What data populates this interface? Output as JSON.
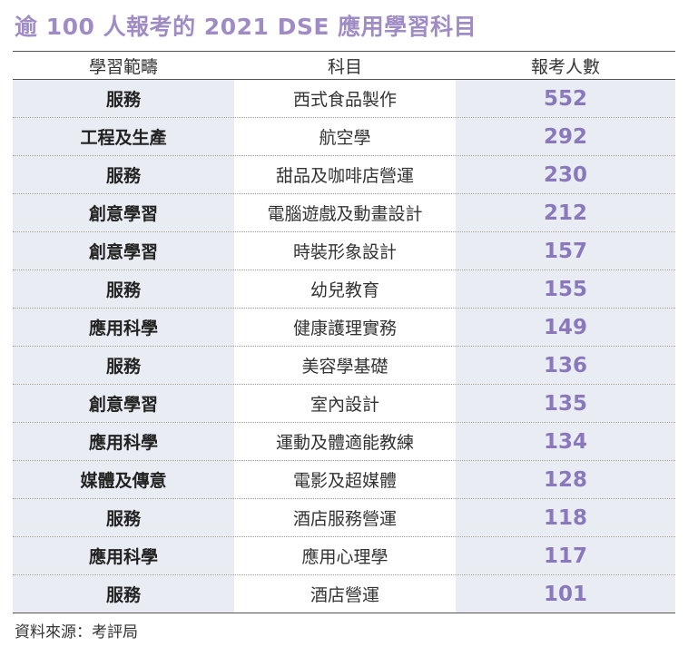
{
  "title": "逾 100 人報考的 2021 DSE 應用學習科目",
  "headers": [
    "學習範疇",
    "科目",
    "報考人數"
  ],
  "rows": [
    {
      "area": "服務",
      "subject": "西式食品製作",
      "count": "552"
    },
    {
      "area": "工程及生產",
      "subject": "航空學",
      "count": "292"
    },
    {
      "area": "服務",
      "subject": "甜品及咖啡店營運",
      "count": "230"
    },
    {
      "area": "創意學習",
      "subject": "電腦遊戲及動畫設計",
      "count": "212"
    },
    {
      "area": "創意學習",
      "subject": "時裝形象設計",
      "count": "157"
    },
    {
      "area": "服務",
      "subject": "幼兒教育",
      "count": "155"
    },
    {
      "area": "應用科學",
      "subject": "健康護理實務",
      "count": "149"
    },
    {
      "area": "服務",
      "subject": "美容學基礎",
      "count": "136"
    },
    {
      "area": "創意學習",
      "subject": "室內設計",
      "count": "135"
    },
    {
      "area": "應用科學",
      "subject": "運動及體適能教練",
      "count": "134"
    },
    {
      "area": "媒體及傳意",
      "subject": "電影及超媒體",
      "count": "128"
    },
    {
      "area": "服務",
      "subject": "酒店服務營運",
      "count": "118"
    },
    {
      "area": "應用科學",
      "subject": "應用心理學",
      "count": "117"
    },
    {
      "area": "服務",
      "subject": "酒店營運",
      "count": "101"
    }
  ],
  "source": "資料來源：考評局"
}
